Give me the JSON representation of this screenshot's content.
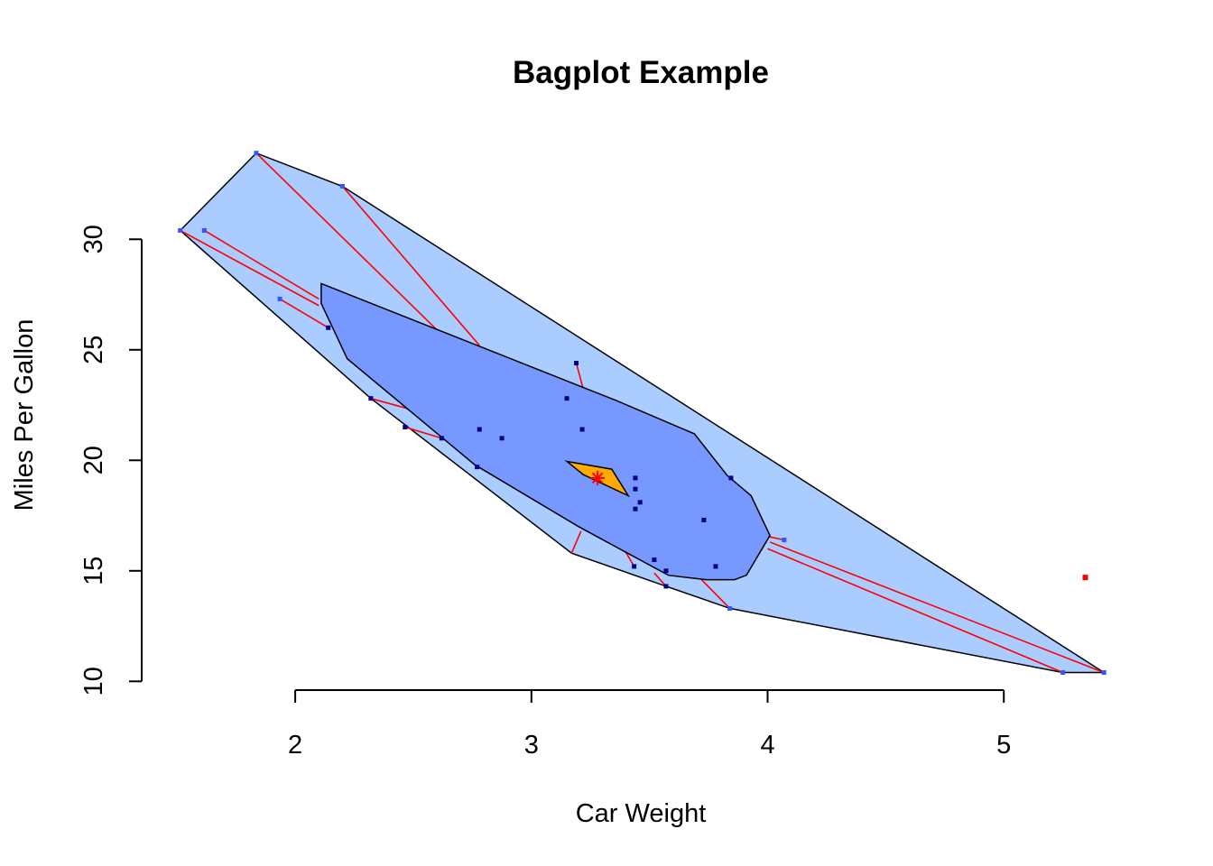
{
  "chart_data": {
    "type": "scatter",
    "variant": "bagplot",
    "title": "Bagplot Example",
    "xlabel": "Car Weight",
    "ylabel": "Miles Per Gallon",
    "xlim": [
      1.35,
      5.58
    ],
    "ylim": [
      9.4,
      34.5
    ],
    "xticks": [
      2,
      3,
      4,
      5
    ],
    "yticks": [
      10,
      15,
      20,
      25,
      30
    ],
    "colors": {
      "loop": "#aaccff",
      "bag": "#7799ff",
      "center_region": "#ffaa00",
      "whisker": "#ff0000",
      "bag_point": "#000088",
      "loop_point": "#3355ff",
      "outlier": "#ff0000"
    },
    "center": [
      3.28,
      19.2
    ],
    "center_region": [
      [
        3.15,
        19.95
      ],
      [
        3.34,
        19.6
      ],
      [
        3.41,
        18.4
      ],
      [
        3.22,
        19.35
      ]
    ],
    "bag": [
      [
        2.11,
        28.0
      ],
      [
        2.11,
        27.1
      ],
      [
        2.22,
        24.6
      ],
      [
        2.76,
        19.8
      ],
      [
        3.2,
        17.0
      ],
      [
        3.58,
        14.8
      ],
      [
        3.74,
        14.6
      ],
      [
        3.86,
        14.6
      ],
      [
        3.91,
        14.8
      ],
      [
        4.01,
        16.6
      ],
      [
        3.93,
        18.4
      ],
      [
        3.83,
        19.3
      ],
      [
        3.69,
        21.2
      ],
      [
        3.36,
        22.7
      ],
      [
        2.11,
        28.0
      ]
    ],
    "loop": [
      [
        1.513,
        30.4
      ],
      [
        1.835,
        33.9
      ],
      [
        2.2,
        32.4
      ],
      [
        5.424,
        10.4
      ],
      [
        5.25,
        10.4
      ],
      [
        3.84,
        13.3
      ],
      [
        3.57,
        14.3
      ],
      [
        3.17,
        15.8
      ],
      [
        2.32,
        22.8
      ],
      [
        1.513,
        30.4
      ]
    ],
    "bag_points": [
      [
        2.62,
        21.0
      ],
      [
        2.875,
        21.0
      ],
      [
        2.32,
        22.8
      ],
      [
        3.215,
        21.4
      ],
      [
        3.44,
        18.7
      ],
      [
        3.46,
        18.1
      ],
      [
        3.57,
        14.3
      ],
      [
        3.19,
        24.4
      ],
      [
        3.15,
        22.8
      ],
      [
        3.44,
        19.2
      ],
      [
        3.44,
        17.8
      ],
      [
        3.73,
        17.3
      ],
      [
        3.78,
        15.2
      ],
      [
        2.78,
        21.4
      ],
      [
        2.14,
        26.0
      ],
      [
        3.52,
        15.5
      ],
      [
        3.435,
        15.2
      ],
      [
        3.845,
        19.2
      ],
      [
        2.465,
        21.5
      ],
      [
        2.77,
        19.7
      ],
      [
        3.57,
        15.0
      ]
    ],
    "loop_points": [
      [
        1.835,
        33.9
      ],
      [
        2.2,
        32.4
      ],
      [
        1.615,
        30.4
      ],
      [
        1.513,
        30.4
      ],
      [
        1.935,
        27.3
      ],
      [
        4.07,
        16.4
      ],
      [
        3.84,
        13.3
      ],
      [
        5.25,
        10.4
      ],
      [
        5.424,
        10.4
      ]
    ],
    "outliers": [
      [
        5.345,
        14.7
      ]
    ],
    "whiskers": [
      [
        [
          1.835,
          33.9
        ],
        [
          2.6,
          25.9
        ]
      ],
      [
        [
          2.2,
          32.4
        ],
        [
          2.78,
          25.2
        ]
      ],
      [
        [
          1.615,
          30.4
        ],
        [
          2.1,
          27.3
        ]
      ],
      [
        [
          1.513,
          30.4
        ],
        [
          2.1,
          27.0
        ]
      ],
      [
        [
          1.935,
          27.3
        ],
        [
          2.14,
          26.0
        ]
      ],
      [
        [
          5.424,
          10.4
        ],
        [
          4.01,
          16.3
        ]
      ],
      [
        [
          5.25,
          10.4
        ],
        [
          4.0,
          16.0
        ]
      ],
      [
        [
          4.07,
          16.4
        ],
        [
          3.98,
          16.6
        ]
      ],
      [
        [
          3.84,
          13.3
        ],
        [
          3.72,
          14.6
        ]
      ],
      [
        [
          3.57,
          14.3
        ],
        [
          3.52,
          14.9
        ]
      ],
      [
        [
          3.435,
          15.2
        ],
        [
          3.38,
          16.2
        ]
      ],
      [
        [
          3.17,
          15.8
        ],
        [
          3.21,
          16.8
        ]
      ],
      [
        [
          3.19,
          24.4
        ],
        [
          3.22,
          23.2
        ]
      ],
      [
        [
          2.32,
          22.8
        ],
        [
          2.49,
          22.3
        ]
      ],
      [
        [
          2.465,
          21.5
        ],
        [
          2.62,
          21.0
        ]
      ],
      [
        [
          3.845,
          19.2
        ],
        [
          3.82,
          19.0
        ]
      ]
    ]
  }
}
